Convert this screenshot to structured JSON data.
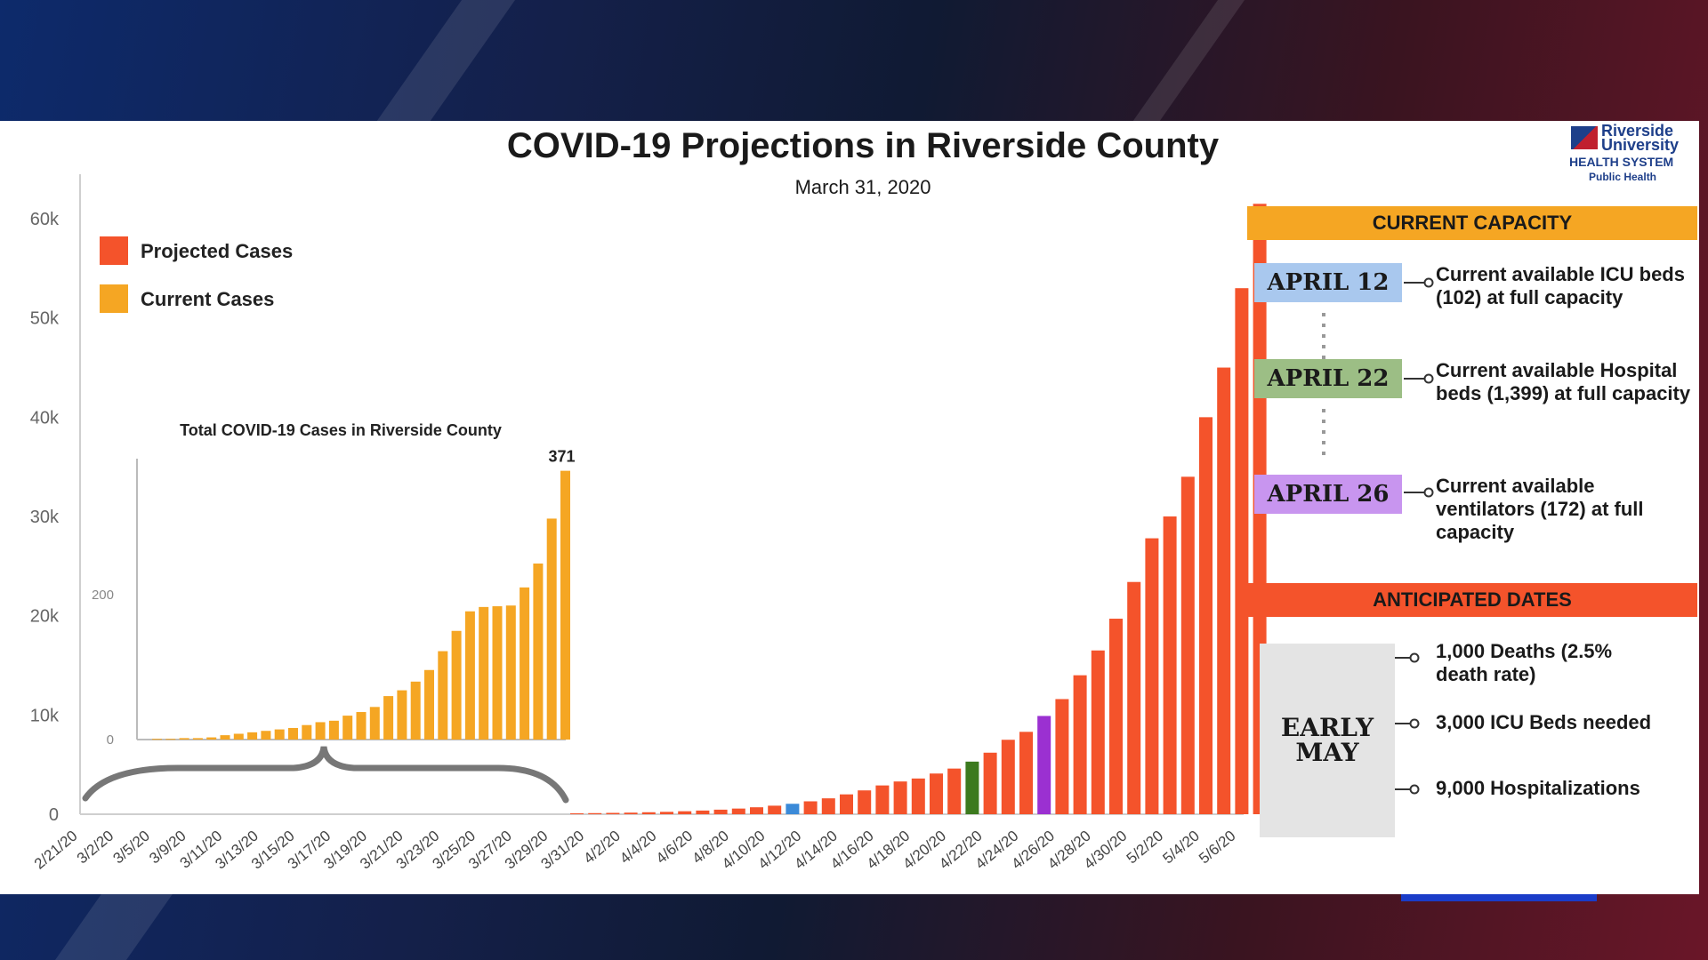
{
  "title": "COVID-19 Projections in Riverside County",
  "subtitle": "March 31, 2020",
  "logo": {
    "line1": "Riverside",
    "line2": "University",
    "line3": "HEALTH SYSTEM",
    "line4": "Public Health"
  },
  "legend": [
    {
      "label": "Projected Cases",
      "color": "#f4532b"
    },
    {
      "label": "Current Cases",
      "color": "#f5a623"
    }
  ],
  "capacity": {
    "header": "CURRENT CAPACITY",
    "header_color": "#f5a623",
    "items": [
      {
        "date": "APRIL 12",
        "color": "#a9c8ee",
        "text": "Current available ICU beds (102) at full capacity"
      },
      {
        "date": "APRIL 22",
        "color": "#9cbe85",
        "text": "Current available Hospital beds (1,399) at full capacity"
      },
      {
        "date": "APRIL 26",
        "color": "#c895ef",
        "text": "Current available ventilators (172) at full capacity"
      }
    ]
  },
  "anticipated": {
    "header": "ANTICIPATED DATES",
    "header_color": "#f4532b",
    "period_line1": "EARLY",
    "period_line2": "MAY",
    "items": [
      "1,000 Deaths (2.5% death rate)",
      "3,000 ICU Beds needed",
      "9,000 Hospitalizations"
    ]
  },
  "chart_data": [
    {
      "type": "bar",
      "title": "",
      "ylim": [
        0,
        65000
      ],
      "yticks": [
        "0",
        "10k",
        "20k",
        "30k",
        "40k",
        "50k",
        "60k"
      ],
      "xtick_labels": [
        "2/21/20",
        "3/2/20",
        "3/5/20",
        "3/9/20",
        "3/11/20",
        "3/13/20",
        "3/15/20",
        "3/17/20",
        "3/19/20",
        "3/21/20",
        "3/23/20",
        "3/25/20",
        "3/27/20",
        "3/29/20",
        "3/31/20",
        "4/2/20",
        "4/4/20",
        "4/6/20",
        "4/8/20",
        "4/10/20",
        "4/12/20",
        "4/14/20",
        "4/16/20",
        "4/18/20",
        "4/20/20",
        "4/22/20",
        "4/24/20",
        "4/26/20",
        "4/28/20",
        "4/30/20",
        "5/2/20",
        "5/4/20",
        "5/6/20"
      ],
      "series": [
        {
          "name": "Projected Cases",
          "color": "#f4532b",
          "start_date": "3/31/20",
          "values": [
            90,
            110,
            135,
            160,
            200,
            240,
            300,
            370,
            460,
            570,
            700,
            860,
            1050,
            1300,
            1600,
            2000,
            2400,
            2900,
            3300,
            3600,
            4100,
            4600,
            5300,
            6200,
            7500,
            8300,
            9900,
            11600,
            14000,
            16500,
            19700,
            23400,
            27800,
            30000,
            34000,
            40000,
            45000,
            53000,
            61500
          ]
        }
      ],
      "highlights": [
        {
          "label": "4/12/20",
          "color": "#3b8ad8"
        },
        {
          "label": "4/22/20",
          "color": "#3c7a1e"
        },
        {
          "label": "4/26/20",
          "color": "#9b30d1"
        }
      ]
    },
    {
      "type": "bar",
      "title": "Total COVID-19 Cases in Riverside County",
      "ylim": [
        0,
        400
      ],
      "yticks": [
        "0",
        "200"
      ],
      "annotation": "371",
      "series": [
        {
          "name": "Current Cases",
          "color": "#f5a623",
          "values": [
            1,
            1,
            2,
            2,
            3,
            6,
            8,
            10,
            12,
            14,
            16,
            20,
            24,
            26,
            33,
            38,
            45,
            60,
            68,
            80,
            96,
            122,
            150,
            177,
            183,
            184,
            185,
            210,
            243,
            305,
            371
          ]
        }
      ]
    }
  ]
}
